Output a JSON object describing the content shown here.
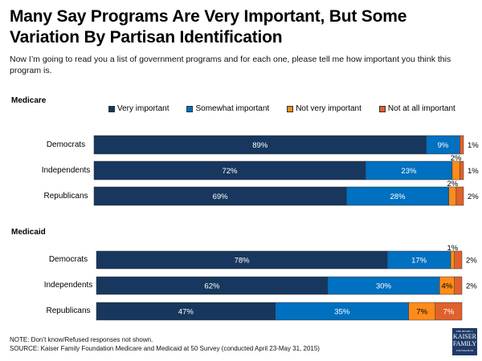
{
  "header": {
    "title": "Many Say Programs Are Very Important, But Some Variation By Partisan Identification",
    "subtitle": "Now I’m going to read you a list of government programs and for each one, please tell me how important you think this program is."
  },
  "legend": [
    {
      "label": "Very important",
      "color": "#17375e"
    },
    {
      "label": "Somewhat important",
      "color": "#0070c0"
    },
    {
      "label": "Not very important",
      "color": "#ff8c1a"
    },
    {
      "label": "Not at all important",
      "color": "#e0612c"
    }
  ],
  "chart_data": [
    {
      "type": "bar",
      "orientation": "horizontal-stacked",
      "title": "Medicare",
      "categories": [
        "Democrats",
        "Independents",
        "Republicans"
      ],
      "series": [
        {
          "name": "Very important",
          "values": [
            89,
            72,
            69
          ],
          "labels": [
            "89%",
            "72%",
            "69%"
          ]
        },
        {
          "name": "Somewhat important",
          "values": [
            9,
            23,
            28
          ],
          "labels": [
            "9%",
            "23%",
            "28%"
          ]
        },
        {
          "name": "Not very important",
          "values": [
            0,
            2,
            2
          ],
          "labels": [
            "",
            "2%",
            "2%"
          ]
        },
        {
          "name": "Not at all important",
          "values": [
            1,
            1,
            2
          ],
          "labels": [
            "1%",
            "1%",
            "2%"
          ]
        }
      ],
      "xlim": [
        0,
        100
      ]
    },
    {
      "type": "bar",
      "orientation": "horizontal-stacked",
      "title": "Medicaid",
      "categories": [
        "Democrats",
        "Independents",
        "Republicans"
      ],
      "series": [
        {
          "name": "Very important",
          "values": [
            78,
            62,
            47
          ],
          "labels": [
            "78%",
            "62%",
            "47%"
          ]
        },
        {
          "name": "Somewhat important",
          "values": [
            17,
            30,
            35
          ],
          "labels": [
            "17%",
            "30%",
            "35%"
          ]
        },
        {
          "name": "Not very important",
          "values": [
            1,
            4,
            7
          ],
          "labels": [
            "1%",
            "4%",
            "7%"
          ]
        },
        {
          "name": "Not at all important",
          "values": [
            2,
            2,
            7
          ],
          "labels": [
            "2%",
            "2%",
            "7%"
          ]
        }
      ],
      "xlim": [
        0,
        100
      ]
    }
  ],
  "footer": {
    "note": "NOTE: Don’t know/Refused responses not shown.",
    "source": "SOURCE: Kaiser Family Foundation Medicare and Medicaid at 50 Survey (conducted April 23-May 31, 2015)",
    "logo": {
      "top": "THE HENRY J.",
      "line1": "KAISER",
      "line2": "FAMILY",
      "bottom": "FOUNDATION"
    }
  }
}
